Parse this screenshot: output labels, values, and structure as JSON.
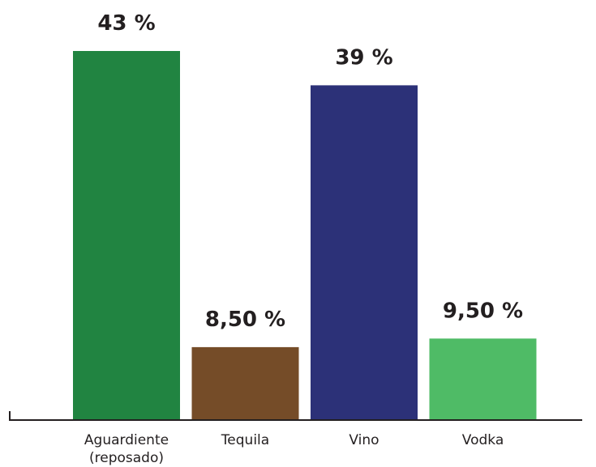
{
  "chart_data": {
    "type": "bar",
    "categories": [
      [
        "Aguardiente",
        "(reposado)"
      ],
      [
        "Tequila"
      ],
      [
        "Vino"
      ],
      [
        "Vodka"
      ]
    ],
    "values": [
      43,
      8.5,
      39,
      9.5
    ],
    "value_labels": [
      "43 %",
      "8,50 %",
      "39 %",
      "9,50 %"
    ],
    "colors": [
      "#218441",
      "#754c28",
      "#2c3178",
      "#4fbb66"
    ],
    "axis_color": "#231f20",
    "title": "",
    "xlabel": "",
    "ylabel": "",
    "ylim": [
      0,
      43
    ],
    "grid": false,
    "legend": "none"
  }
}
